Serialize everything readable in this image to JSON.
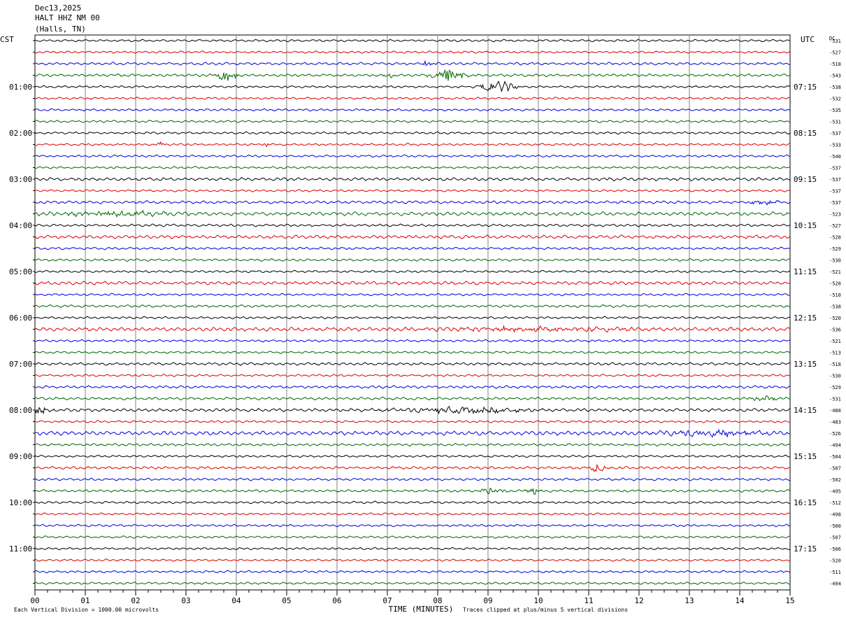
{
  "header": {
    "date": "Dec13,2025",
    "station": "HALT HHZ NM 00",
    "location": "(Halls, TN)"
  },
  "labels": {
    "left_tz": "CST",
    "right_tz": "UTC",
    "dc": "DC",
    "xlabel": "TIME (MINUTES)",
    "scale_note": "Each Vertical Division = 1000.00 microvolts",
    "clip_note": "Traces clipped at plus/minus 5 vertical divisions"
  },
  "colors": {
    "trace_cycle": [
      "#000000",
      "#dd0000",
      "#0000dd",
      "#006600"
    ],
    "grid": "#808080",
    "frame": "#000000"
  },
  "chart_data": {
    "type": "helicorder",
    "x": {
      "min": 0,
      "max": 15,
      "unit": "minutes",
      "ticks": [
        "00",
        "01",
        "02",
        "03",
        "04",
        "05",
        "06",
        "07",
        "08",
        "09",
        "10",
        "11",
        "12",
        "13",
        "14",
        "15"
      ]
    },
    "lines_per_hour": 4,
    "line_count": 48,
    "left_hour_labels": [
      {
        "line": 4,
        "text": "01:00"
      },
      {
        "line": 8,
        "text": "02:00"
      },
      {
        "line": 12,
        "text": "03:00"
      },
      {
        "line": 16,
        "text": "04:00"
      },
      {
        "line": 20,
        "text": "05:00"
      },
      {
        "line": 24,
        "text": "06:00"
      },
      {
        "line": 28,
        "text": "07:00"
      },
      {
        "line": 32,
        "text": "08:00"
      },
      {
        "line": 36,
        "text": "09:00"
      },
      {
        "line": 40,
        "text": "10:00"
      },
      {
        "line": 44,
        "text": "11:00"
      }
    ],
    "right_hour_labels": [
      {
        "line": 4,
        "text": "07:15"
      },
      {
        "line": 8,
        "text": "08:15"
      },
      {
        "line": 12,
        "text": "09:15"
      },
      {
        "line": 16,
        "text": "10:15"
      },
      {
        "line": 20,
        "text": "11:15"
      },
      {
        "line": 24,
        "text": "12:15"
      },
      {
        "line": 28,
        "text": "13:15"
      },
      {
        "line": 32,
        "text": "14:15"
      },
      {
        "line": 36,
        "text": "15:15"
      },
      {
        "line": 40,
        "text": "16:15"
      },
      {
        "line": 44,
        "text": "17:15"
      }
    ],
    "dc_offsets": [
      "-531",
      "-527",
      "-518",
      "-543",
      "-538",
      "-532",
      "-535",
      "-531",
      "-537",
      "-533",
      "-540",
      "-537",
      "-537",
      "-537",
      "-537",
      "-523",
      "-527",
      "-528",
      "-529",
      "-530",
      "-521",
      "-528",
      "-510",
      "-538",
      "-520",
      "-536",
      "-521",
      "-513",
      "-518",
      "-530",
      "-529",
      "-531",
      "-488",
      "-483",
      "-526",
      "-494",
      "-504",
      "-507",
      "-502",
      "-495",
      "-512",
      "-498",
      "-500",
      "-507",
      "-506",
      "-520",
      "-511",
      "-494"
    ],
    "trace_amplitudes": [
      1,
      1,
      1.2,
      1.2,
      1,
      1,
      1,
      1,
      1,
      1,
      1,
      1,
      1.4,
      1,
      1.3,
      1.6,
      1.1,
      1.5,
      1.1,
      1.1,
      1,
      1.5,
      1,
      1.1,
      1,
      1.7,
      1,
      1,
      1.2,
      1,
      1.2,
      1.2,
      1.4,
      1,
      1.8,
      1.1,
      1,
      1.2,
      1.1,
      1.1,
      1,
      1,
      1,
      1,
      1,
      1,
      1,
      1
    ],
    "events": [
      {
        "line": 3,
        "minute": 3.8,
        "amplitude": 8,
        "duration": 0.3
      },
      {
        "line": 3,
        "minute": 8.2,
        "amplitude": 9,
        "duration": 0.5
      },
      {
        "line": 3,
        "minute": 7.0,
        "amplitude": 4,
        "duration": 0.2
      },
      {
        "line": 2,
        "minute": 7.8,
        "amplitude": 4,
        "duration": 0.2
      },
      {
        "line": 4,
        "minute": 9.2,
        "amplitude": 9,
        "duration": 0.5
      },
      {
        "line": 9,
        "minute": 2.5,
        "amplitude": 4,
        "duration": 0.1
      },
      {
        "line": 9,
        "minute": 4.6,
        "amplitude": 4,
        "duration": 0.1
      },
      {
        "line": 14,
        "minute": 14.5,
        "amplitude": 3,
        "duration": 0.5
      },
      {
        "line": 15,
        "minute": 1.5,
        "amplitude": 3,
        "duration": 2.0
      },
      {
        "line": 32,
        "minute": 0.1,
        "amplitude": 6,
        "duration": 0.3
      },
      {
        "line": 32,
        "minute": 8.5,
        "amplitude": 4,
        "duration": 2.0
      },
      {
        "line": 34,
        "minute": 13.5,
        "amplitude": 4,
        "duration": 1.5
      },
      {
        "line": 37,
        "minute": 11.2,
        "amplitude": 6,
        "duration": 0.3
      },
      {
        "line": 39,
        "minute": 9.1,
        "amplitude": 7,
        "duration": 0.3
      },
      {
        "line": 39,
        "minute": 9.9,
        "amplitude": 5,
        "duration": 0.2
      },
      {
        "line": 25,
        "minute": 10.0,
        "amplitude": 3,
        "duration": 3.0
      },
      {
        "line": 31,
        "minute": 14.5,
        "amplitude": 4,
        "duration": 0.4
      }
    ]
  }
}
